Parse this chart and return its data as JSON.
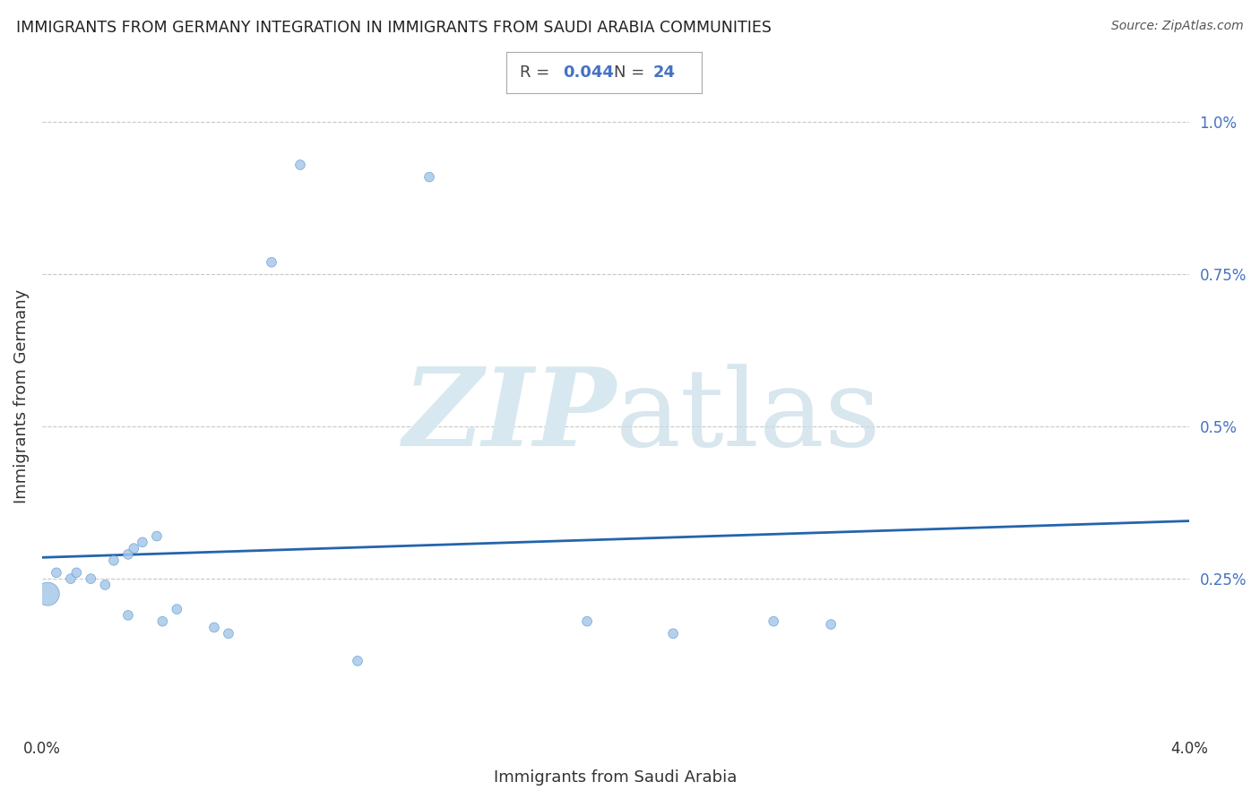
{
  "title": "IMMIGRANTS FROM GERMANY INTEGRATION IN IMMIGRANTS FROM SAUDI ARABIA COMMUNITIES",
  "source": "Source: ZipAtlas.com",
  "xlabel": "Immigrants from Saudi Arabia",
  "ylabel": "Immigrants from Germany",
  "R_val": "0.044",
  "N_val": "24",
  "xlim": [
    0.0,
    0.04
  ],
  "ylim": [
    0.0,
    0.011
  ],
  "xticks": [
    0.0,
    0.01,
    0.02,
    0.03,
    0.04
  ],
  "xtick_labels": [
    "0.0%",
    "",
    "",
    "",
    "4.0%"
  ],
  "yticks": [
    0.0025,
    0.005,
    0.0075,
    0.01
  ],
  "ytick_labels": [
    "0.25%",
    "0.5%",
    "0.75%",
    "1.0%"
  ],
  "dot_color": "#a8c8e8",
  "dot_edge_color": "#5b9bd5",
  "dot_alpha": 0.85,
  "dot_size": 60,
  "large_dot_size": 350,
  "line_color": "#2464ac",
  "trend_y_start": 0.00285,
  "trend_y_end": 0.00345,
  "grid_color": "#c8c8c8",
  "background_color": "#ffffff",
  "title_color": "#222222",
  "watermark_color": "#d8e8f0",
  "annotation_blue": "#4472c4",
  "annotation_dark": "#444444"
}
